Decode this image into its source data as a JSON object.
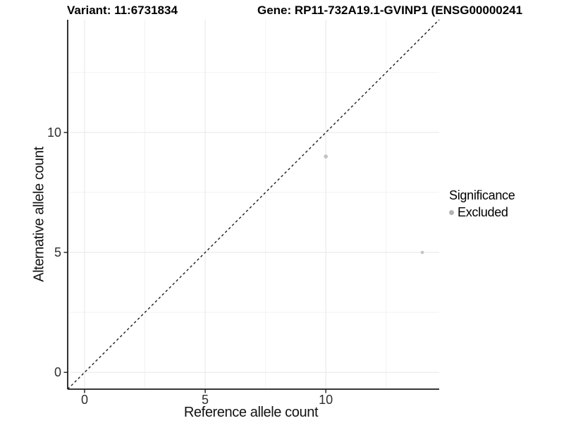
{
  "titles": {
    "variant": "Variant: 11:6731834",
    "gene": "Gene: RP11-732A19.1-GVINP1 (ENSG00000241"
  },
  "chart_data": {
    "type": "scatter",
    "title_left": "Variant: 11:6731834",
    "title_right": "Gene: RP11-732A19.1-GVINP1 (ENSG00000241",
    "xlabel": "Reference allele count",
    "ylabel": "Alternative allele count",
    "xlim": [
      -0.7,
      14.7
    ],
    "ylim": [
      -0.7,
      14.7
    ],
    "x_breaks": [
      0,
      5,
      10
    ],
    "y_breaks": [
      0,
      5,
      10
    ],
    "x_minor_breaks": [
      2.5,
      7.5,
      12.5
    ],
    "y_minor_breaks": [
      2.5,
      7.5,
      12.5
    ],
    "grid": true,
    "identity_line": {
      "show": true,
      "style": "dashed",
      "slope": 1,
      "intercept": 0
    },
    "series": [
      {
        "name": "Excluded",
        "color": "#c4c4c4",
        "points": [
          {
            "x": 10,
            "y": 9,
            "r": 2.9
          },
          {
            "x": 14,
            "y": 5,
            "r": 2.3
          }
        ]
      }
    ],
    "legend": {
      "title": "Significance",
      "position": "right",
      "entries": [
        {
          "label": "Excluded",
          "color": "#b3b3b3"
        }
      ]
    },
    "style": {
      "axis_color": "#1c1c1c",
      "tick_label_color": "#2e2e2e",
      "grid_major_color": "#e6e6e6",
      "grid_minor_color": "#f2f2f2",
      "dashed_line_color": "#1c1c1c",
      "background": "#ffffff"
    }
  }
}
